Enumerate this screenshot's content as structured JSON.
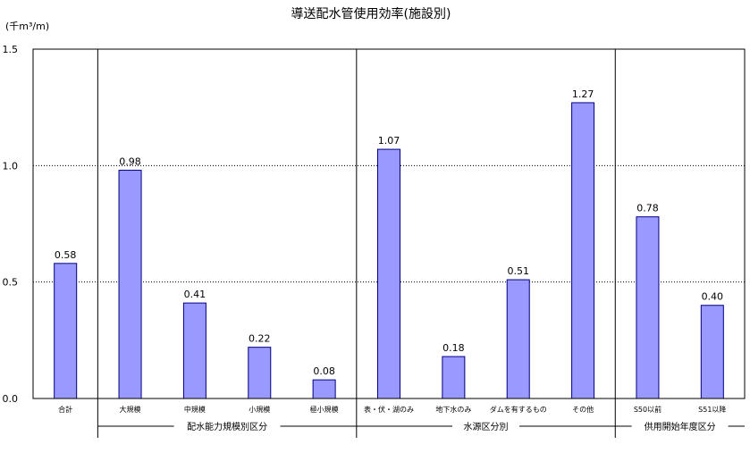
{
  "chart_data": {
    "type": "bar",
    "title": "導送配水管使用効率(施設別)",
    "ylabel": "(千m³/m)",
    "ylim": [
      0,
      1.5
    ],
    "yticks": [
      "0.0",
      "0.5",
      "1.0",
      "1.5"
    ],
    "grid": "horizontal dotted at 0.5 and 1.0",
    "bar_color": "#9999ff",
    "bar_edge_color": "#000080",
    "categories": [
      "合計",
      "大規模",
      "中規模",
      "小規模",
      "極小規模",
      "表・伏・湖のみ",
      "地下水のみ",
      "ダムを有するもの",
      "その他",
      "S50以前",
      "S51以降"
    ],
    "values": [
      0.58,
      0.98,
      0.41,
      0.22,
      0.08,
      1.07,
      0.18,
      0.51,
      1.27,
      0.78,
      0.4
    ],
    "value_labels": [
      "0.58",
      "0.98",
      "0.41",
      "0.22",
      "0.08",
      "1.07",
      "0.18",
      "0.51",
      "1.27",
      "0.78",
      "0.40"
    ],
    "groups": [
      {
        "label": "配水能力規模別区分",
        "categories": [
          "大規模",
          "中規模",
          "小規模",
          "極小規模"
        ]
      },
      {
        "label": "水源区分別",
        "categories": [
          "表・伏・湖のみ",
          "地下水のみ",
          "ダムを有するもの",
          "その他"
        ]
      },
      {
        "label": "供用開始年度区分",
        "categories": [
          "S50以前",
          "S51以降"
        ]
      }
    ]
  }
}
